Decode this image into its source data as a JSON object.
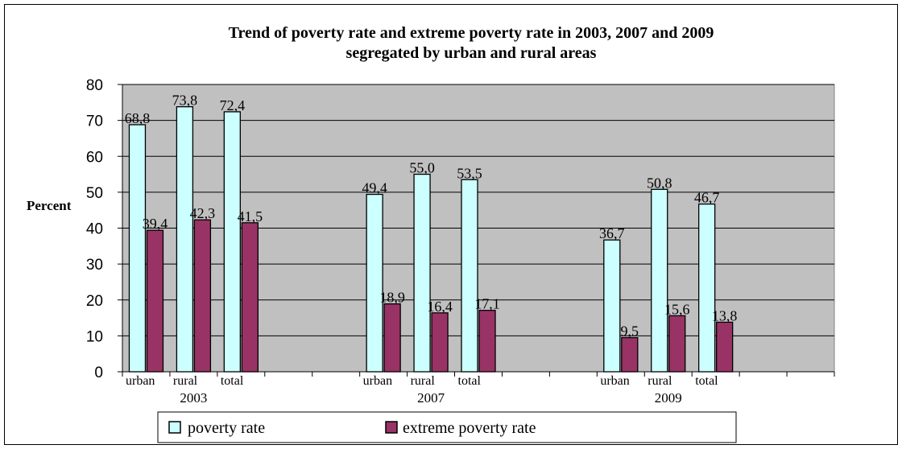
{
  "chart_data": {
    "type": "bar",
    "title": "Trend of poverty rate and extreme poverty rate in 2003, 2007 and 2009",
    "subtitle": "segregated by urban and rural areas",
    "ylabel": "Percent",
    "ylim": [
      0,
      80
    ],
    "yticks": [
      "0",
      "10",
      "20",
      "30",
      "40",
      "50",
      "60",
      "70",
      "80"
    ],
    "grid": true,
    "legend_position": "bottom",
    "groups": [
      {
        "year": "2003",
        "categories": [
          "urban",
          "rural",
          "total"
        ],
        "poverty": [
          68.8,
          73.8,
          72.4
        ],
        "poverty_labels": [
          "68,8",
          "73,8",
          "72,4"
        ],
        "extreme": [
          39.4,
          42.3,
          41.5
        ],
        "extreme_labels": [
          "39,4",
          "42,3",
          "41,5"
        ]
      },
      {
        "year": "2007",
        "categories": [
          "urban",
          "rural",
          "total"
        ],
        "poverty": [
          49.4,
          55.0,
          53.5
        ],
        "poverty_labels": [
          "49,4",
          "55,0",
          "53,5"
        ],
        "extreme": [
          18.9,
          16.4,
          17.1
        ],
        "extreme_labels": [
          "18,9",
          "16,4",
          "17,1"
        ]
      },
      {
        "year": "2009",
        "categories": [
          "urban",
          "rural",
          "total"
        ],
        "poverty": [
          36.7,
          50.8,
          46.7
        ],
        "poverty_labels": [
          "36,7",
          "50,8",
          "46,7"
        ],
        "extreme": [
          9.5,
          15.6,
          13.8
        ],
        "extreme_labels": [
          "9,5",
          "15,6",
          "13,8"
        ]
      }
    ],
    "series": [
      {
        "name": "poverty rate",
        "color": "#ccffff"
      },
      {
        "name": "extreme poverty rate",
        "color": "#993366"
      }
    ],
    "plot_background": "#c0c0c0"
  }
}
